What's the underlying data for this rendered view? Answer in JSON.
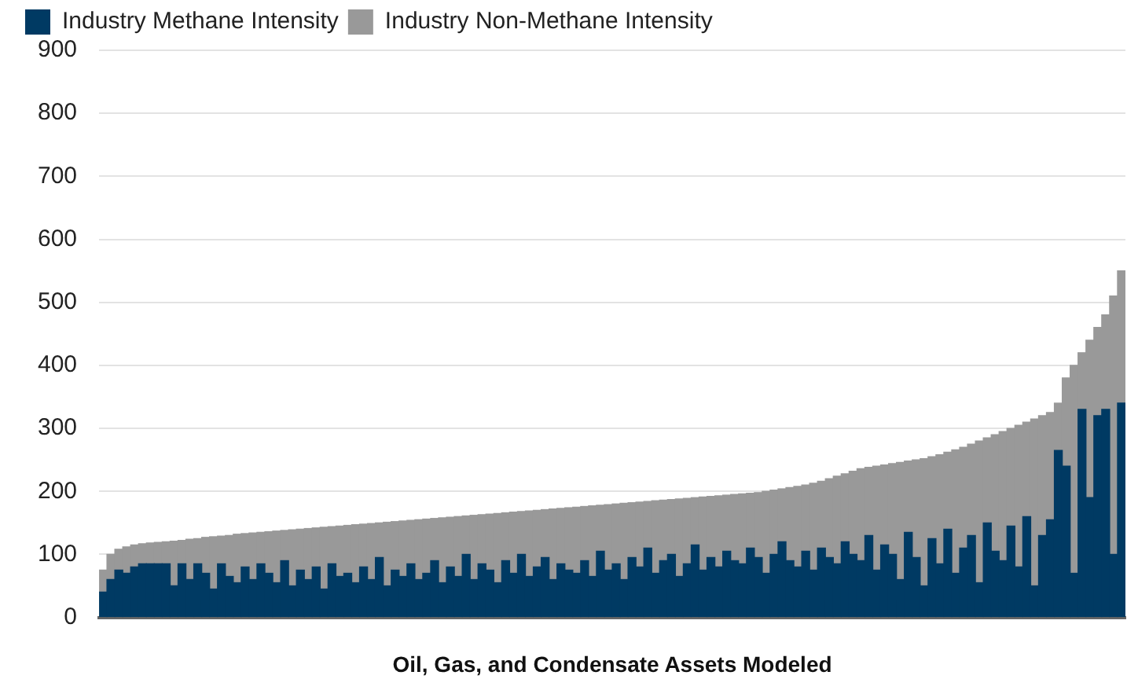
{
  "chart_data": {
    "type": "bar",
    "stacked": true,
    "xlabel": "Oil, Gas, and Condensate Assets Modeled",
    "legend": "top left",
    "grid": "y",
    "ylim": [
      0,
      900
    ],
    "yticks": [
      0,
      100,
      200,
      300,
      400,
      500,
      600,
      700,
      800,
      900
    ],
    "categories": [
      null,
      null,
      null,
      null,
      null,
      null,
      null,
      null,
      null,
      null,
      null,
      null,
      null,
      null,
      null,
      null,
      null,
      null,
      null,
      null,
      null,
      null,
      null,
      null,
      null,
      null,
      null,
      null,
      null,
      null,
      null,
      null,
      null,
      null,
      null,
      null,
      null,
      null,
      null,
      null,
      null,
      null,
      null,
      null,
      null,
      null,
      null,
      null,
      null,
      null,
      null,
      null,
      null,
      null,
      null,
      null,
      null,
      null,
      null,
      null,
      null,
      null,
      null,
      null,
      null,
      null,
      null,
      null,
      null,
      null,
      null,
      null,
      null,
      null,
      null,
      null,
      null,
      null,
      null,
      null,
      null,
      null,
      null,
      null,
      null,
      null,
      null,
      null,
      null,
      null,
      null,
      null,
      null,
      null,
      null,
      null,
      null,
      null,
      null,
      null,
      null,
      null,
      null,
      null,
      null,
      null,
      null,
      null,
      null,
      null,
      null,
      null,
      null,
      null,
      null,
      null,
      null,
      null,
      null,
      null,
      null,
      null,
      null,
      null,
      null,
      null,
      null,
      null,
      null,
      null
    ],
    "series": [
      {
        "name": "Industry Methane Intensity",
        "color": "#003a63",
        "values": [
          40,
          60,
          75,
          70,
          80,
          85,
          85,
          85,
          85,
          50,
          85,
          60,
          85,
          70,
          45,
          85,
          65,
          55,
          80,
          60,
          85,
          70,
          55,
          90,
          50,
          75,
          60,
          80,
          45,
          85,
          65,
          70,
          55,
          80,
          60,
          95,
          50,
          75,
          65,
          85,
          60,
          70,
          90,
          55,
          80,
          65,
          100,
          60,
          85,
          75,
          55,
          90,
          70,
          100,
          65,
          80,
          95,
          60,
          85,
          75,
          70,
          90,
          65,
          105,
          75,
          85,
          60,
          95,
          80,
          110,
          70,
          90,
          100,
          65,
          85,
          115,
          75,
          95,
          80,
          105,
          90,
          85,
          110,
          95,
          70,
          100,
          120,
          90,
          80,
          105,
          75,
          110,
          95,
          85,
          120,
          100,
          90,
          130,
          75,
          115,
          100,
          60,
          135,
          95,
          50,
          125,
          85,
          140,
          70,
          110,
          130,
          55,
          150,
          105,
          90,
          145,
          80,
          160,
          50,
          130,
          155,
          265,
          240,
          70,
          330,
          190,
          320,
          330,
          100,
          340
        ]
      },
      {
        "name": "Industry Non-Methane Intensity",
        "color": "#999999",
        "values": [
          35,
          40,
          33,
          42,
          35,
          32,
          33,
          34,
          35,
          71,
          37,
          64,
          40,
          57,
          83,
          44,
          65,
          77,
          53,
          74,
          50,
          66,
          82,
          48,
          89,
          65,
          81,
          62,
          98,
          59,
          80,
          76,
          92,
          68,
          89,
          55,
          101,
          77,
          88,
          69,
          95,
          86,
          67,
          103,
          79,
          95,
          61,
          102,
          78,
          89,
          110,
          76,
          97,
          68,
          104,
          90,
          76,
          112,
          88,
          99,
          105,
          86,
          112,
          73,
          104,
          95,
          121,
          87,
          103,
          74,
          115,
          96,
          87,
          123,
          104,
          75,
          116,
          97,
          113,
          89,
          105,
          111,
          87,
          103,
          130,
          102,
          84,
          116,
          128,
          105,
          138,
          106,
          125,
          139,
          108,
          132,
          146,
          108,
          165,
          127,
          144,
          186,
          113,
          155,
          202,
          130,
          173,
          122,
          196,
          160,
          145,
          225,
          135,
          185,
          205,
          155,
          225,
          150,
          265,
          190,
          170,
          75,
          140,
          330,
          90,
          250,
          140,
          150,
          410,
          210
        ]
      }
    ]
  }
}
